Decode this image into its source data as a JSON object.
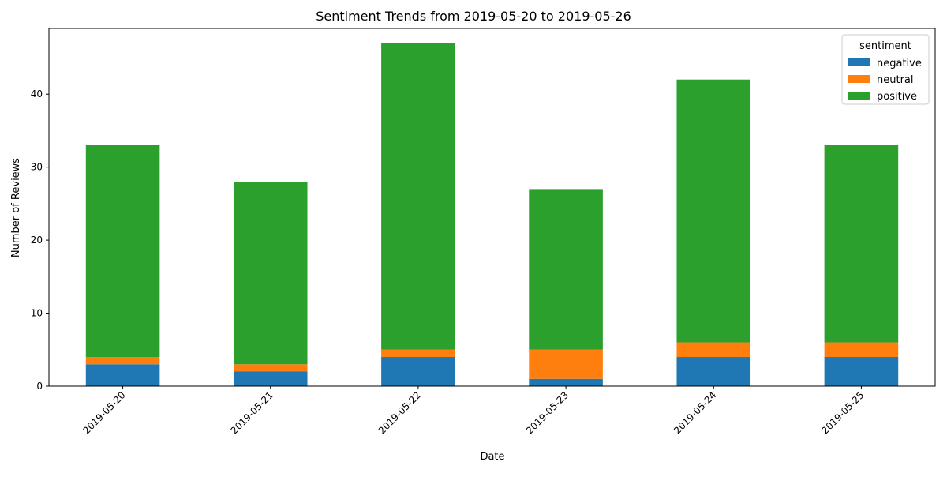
{
  "chart_data": {
    "type": "bar",
    "stacked": true,
    "title": "Sentiment Trends from 2019-05-20 to 2019-05-26",
    "xlabel": "Date",
    "ylabel": "Number of Reviews",
    "categories": [
      "2019-05-20",
      "2019-05-21",
      "2019-05-22",
      "2019-05-23",
      "2019-05-24",
      "2019-05-25"
    ],
    "series": [
      {
        "name": "negative",
        "color": "#1f77b4",
        "values": [
          3,
          2,
          4,
          1,
          4,
          4
        ]
      },
      {
        "name": "neutral",
        "color": "#ff7f0e",
        "values": [
          1,
          1,
          1,
          4,
          2,
          2
        ]
      },
      {
        "name": "positive",
        "color": "#2ca02c",
        "values": [
          29,
          25,
          42,
          22,
          36,
          27
        ]
      }
    ],
    "ylim": [
      0,
      49
    ],
    "yticks": [
      0,
      10,
      20,
      30,
      40
    ],
    "grid": false,
    "legend": {
      "title": "sentiment",
      "position": "top-right"
    },
    "xtick_rotation": 45
  }
}
